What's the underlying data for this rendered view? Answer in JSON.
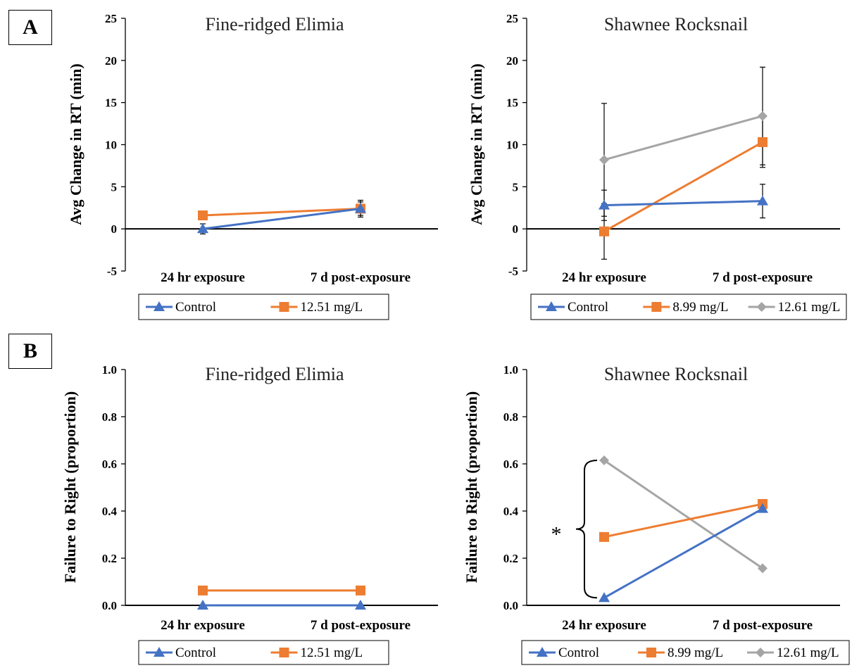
{
  "panels": [
    {
      "label": "A"
    },
    {
      "label": "B"
    }
  ],
  "chart_data": [
    {
      "type": "line",
      "title": "Fine-ridged Elimia",
      "ylabel": "Avg Change in RT (min)",
      "ylim": [
        -5,
        25
      ],
      "yticks": [
        "25",
        "20",
        "15",
        "10",
        "5",
        "0",
        "-5"
      ],
      "categories": [
        "24 hr exposure",
        "7 d post-exposure"
      ],
      "series": [
        {
          "name": "Control",
          "values": [
            0.0,
            2.4
          ],
          "errors": [
            0.6,
            1.0
          ],
          "color": "#4472C4",
          "marker": "triangle"
        },
        {
          "name": "12.51 mg/L",
          "values": [
            1.6,
            2.4
          ],
          "errors": [
            0.0,
            0.8
          ],
          "color": "#ED7D31",
          "marker": "square"
        }
      ]
    },
    {
      "type": "line",
      "title": "Shawnee Rocksnail",
      "ylabel": "Avg Change in RT (min)",
      "ylim": [
        -5,
        25
      ],
      "yticks": [
        "25",
        "20",
        "15",
        "10",
        "5",
        "0",
        "-5"
      ],
      "categories": [
        "24 hr exposure",
        "7 d post-exposure"
      ],
      "series": [
        {
          "name": "Control",
          "values": [
            2.8,
            3.3
          ],
          "errors": [
            1.8,
            2.0
          ],
          "color": "#4472C4",
          "marker": "triangle"
        },
        {
          "name": "8.99 mg/L",
          "values": [
            -0.3,
            10.3
          ],
          "errors": [
            3.3,
            3.0
          ],
          "color": "#ED7D31",
          "marker": "square"
        },
        {
          "name": "12.61 mg/L",
          "values": [
            8.2,
            13.4
          ],
          "errors": [
            6.7,
            5.8
          ],
          "color": "#A5A5A5",
          "marker": "diamond"
        }
      ]
    },
    {
      "type": "line",
      "title": "Fine-ridged Elimia",
      "ylabel": "Failure to Right (proportion)",
      "ylim": [
        0,
        1
      ],
      "yticks": [
        "1.0",
        "0.8",
        "0.6",
        "0.4",
        "0.2",
        "0.0"
      ],
      "categories": [
        "24 hr exposure",
        "7 d post-exposure"
      ],
      "series": [
        {
          "name": "Control",
          "values": [
            0.0,
            0.0
          ],
          "color": "#4472C4",
          "marker": "triangle"
        },
        {
          "name": "12.51 mg/L",
          "values": [
            0.063,
            0.063
          ],
          "color": "#ED7D31",
          "marker": "square"
        }
      ]
    },
    {
      "type": "line",
      "title": "Shawnee Rocksnail",
      "ylabel": "Failure to Right (proportion)",
      "ylim": [
        0,
        1
      ],
      "yticks": [
        "1.0",
        "0.8",
        "0.6",
        "0.4",
        "0.2",
        "0.0"
      ],
      "categories": [
        "24 hr exposure",
        "7 d post-exposure"
      ],
      "annotation": "*",
      "series": [
        {
          "name": "Control",
          "values": [
            0.032,
            0.41
          ],
          "color": "#4472C4",
          "marker": "triangle"
        },
        {
          "name": "8.99 mg/L",
          "values": [
            0.29,
            0.43
          ],
          "color": "#ED7D31",
          "marker": "square"
        },
        {
          "name": "12.61 mg/L",
          "values": [
            0.615,
            0.157
          ],
          "color": "#A5A5A5",
          "marker": "diamond"
        }
      ]
    }
  ]
}
